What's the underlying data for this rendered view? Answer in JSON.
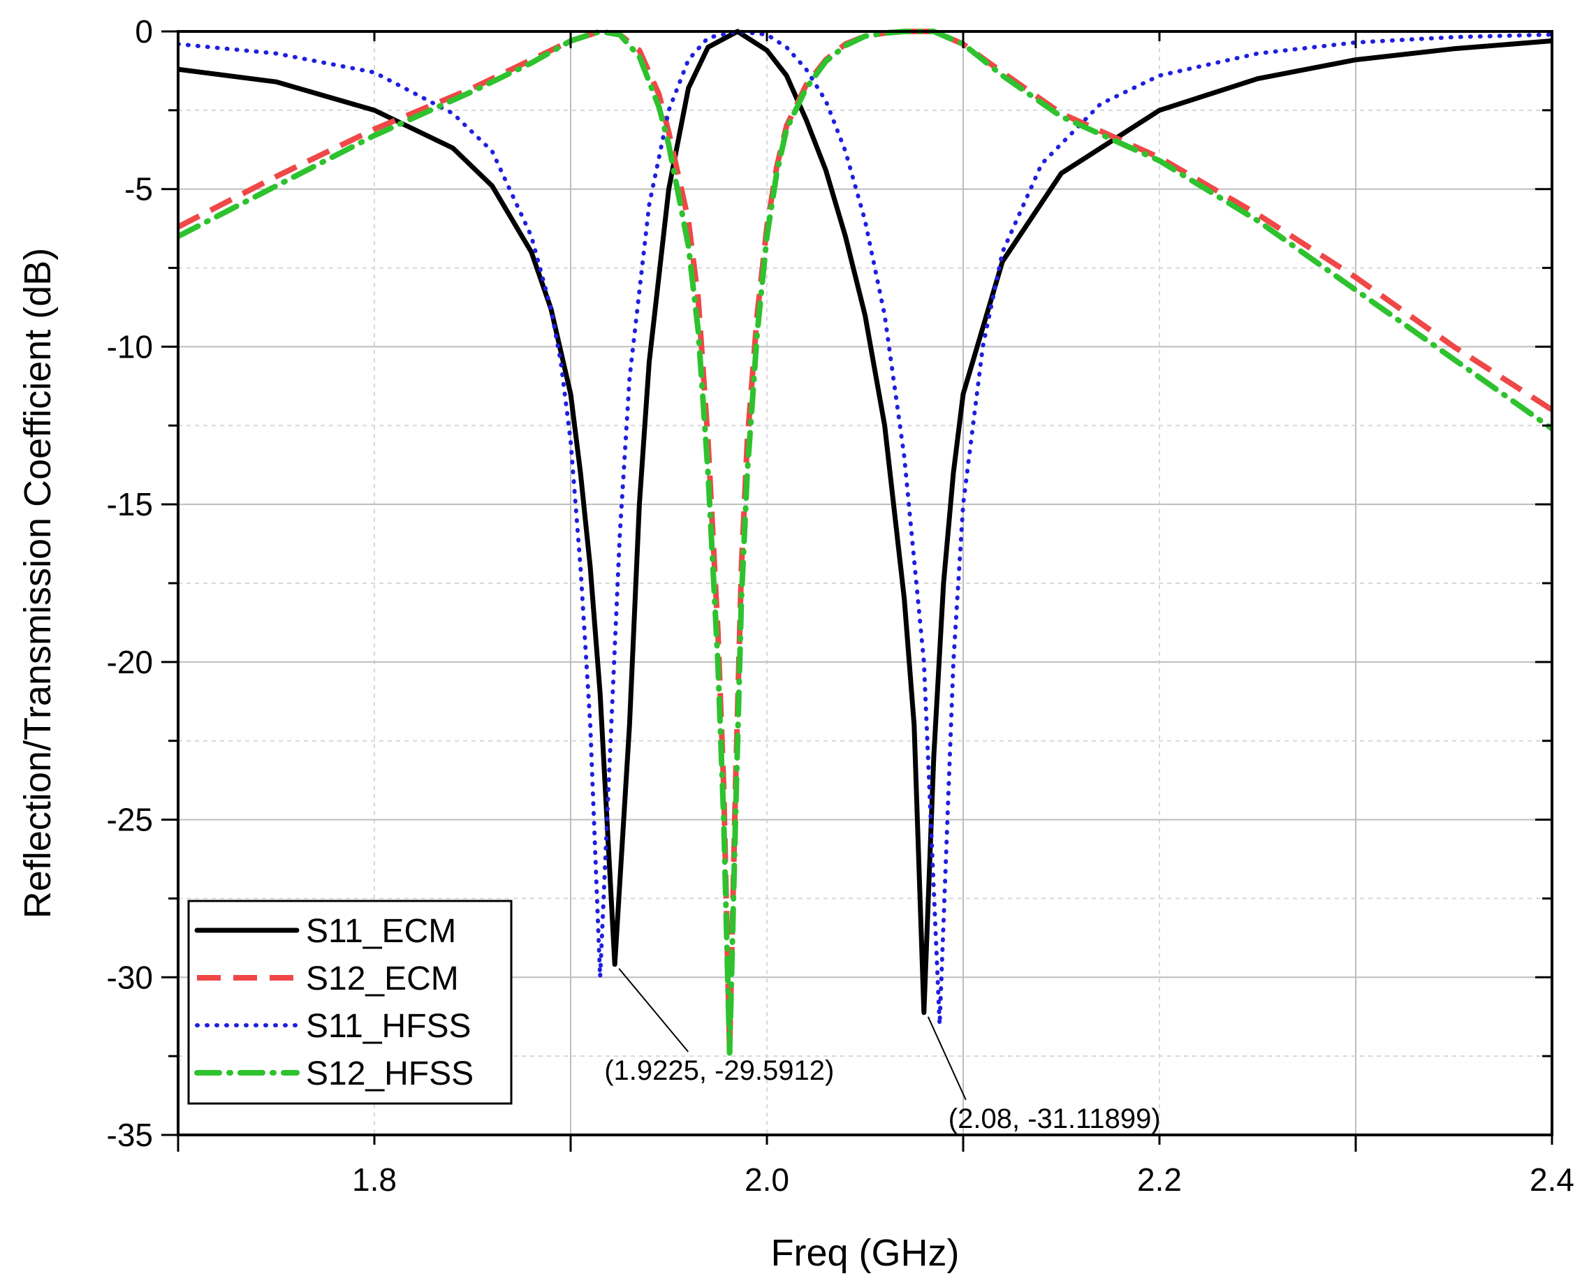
{
  "chart_data": {
    "type": "line",
    "title": "",
    "xlabel": "Freq (GHz)",
    "ylabel": "Reflection/Transmission Coefficient (dB)",
    "xlim": [
      1.7,
      2.4
    ],
    "ylim": [
      -35,
      0
    ],
    "xticks": [
      1.8,
      2.0,
      2.2,
      2.4
    ],
    "xtick_labels": [
      "1.8",
      "2.0",
      "2.2",
      "2.4"
    ],
    "yticks": [
      0,
      -5,
      -10,
      -15,
      -20,
      -25,
      -30,
      -35
    ],
    "ytick_labels": [
      "0",
      "-5",
      "-10",
      "-15",
      "-20",
      "-25",
      "-30",
      "-35"
    ],
    "grid": true,
    "legend_position": "bottom-left",
    "series": [
      {
        "name": "S11_ECM",
        "color": "#000000",
        "style": "solid",
        "x": [
          1.7,
          1.75,
          1.8,
          1.84,
          1.86,
          1.88,
          1.89,
          1.9,
          1.905,
          1.91,
          1.915,
          1.9225,
          1.93,
          1.935,
          1.94,
          1.95,
          1.96,
          1.97,
          1.985,
          2.0,
          2.01,
          2.02,
          2.03,
          2.04,
          2.05,
          2.06,
          2.07,
          2.075,
          2.08,
          2.085,
          2.09,
          2.095,
          2.1,
          2.12,
          2.15,
          2.2,
          2.25,
          2.3,
          2.35,
          2.4
        ],
        "y": [
          -1.2,
          -1.6,
          -2.5,
          -3.7,
          -4.9,
          -7.0,
          -8.8,
          -11.5,
          -14.0,
          -17.0,
          -21.0,
          -29.59,
          -22.0,
          -15.0,
          -10.5,
          -5.0,
          -1.8,
          -0.5,
          0.0,
          -0.6,
          -1.4,
          -2.8,
          -4.4,
          -6.5,
          -9.0,
          -12.5,
          -18.0,
          -22.0,
          -31.12,
          -23.0,
          -17.5,
          -14.0,
          -11.5,
          -7.3,
          -4.5,
          -2.5,
          -1.5,
          -0.9,
          -0.55,
          -0.3
        ]
      },
      {
        "name": "S12_ECM",
        "color": "#f04747",
        "style": "dashed",
        "x": [
          1.7,
          1.75,
          1.8,
          1.85,
          1.88,
          1.9,
          1.915,
          1.925,
          1.935,
          1.945,
          1.95,
          1.96,
          1.965,
          1.97,
          1.975,
          1.978,
          1.981,
          1.984,
          1.987,
          1.99,
          1.995,
          2.0,
          2.005,
          2.01,
          2.02,
          2.03,
          2.04,
          2.05,
          2.06,
          2.07,
          2.085,
          2.1,
          2.12,
          2.15,
          2.2,
          2.25,
          2.3,
          2.35,
          2.4
        ],
        "y": [
          -6.2,
          -4.6,
          -3.1,
          -1.8,
          -0.9,
          -0.3,
          0.0,
          -0.1,
          -0.6,
          -2.0,
          -3.2,
          -6.0,
          -8.5,
          -13.0,
          -19.0,
          -24.0,
          -32.3,
          -24.0,
          -17.0,
          -13.0,
          -9.0,
          -6.2,
          -4.3,
          -3.0,
          -1.7,
          -0.9,
          -0.4,
          -0.15,
          -0.05,
          0.0,
          0.0,
          -0.4,
          -1.3,
          -2.6,
          -4.0,
          -5.8,
          -7.8,
          -10.0,
          -12.0
        ]
      },
      {
        "name": "S11_HFSS",
        "color": "#1f1fe0",
        "style": "dotted",
        "x": [
          1.7,
          1.75,
          1.8,
          1.84,
          1.86,
          1.88,
          1.89,
          1.895,
          1.9,
          1.905,
          1.91,
          1.915,
          1.92,
          1.925,
          1.93,
          1.94,
          1.95,
          1.96,
          1.97,
          1.985,
          2.0,
          2.01,
          2.02,
          2.03,
          2.04,
          2.05,
          2.06,
          2.07,
          2.08,
          2.088,
          2.095,
          2.1,
          2.11,
          2.12,
          2.14,
          2.17,
          2.2,
          2.25,
          2.3,
          2.35,
          2.4
        ],
        "y": [
          -0.4,
          -0.7,
          -1.3,
          -2.6,
          -3.8,
          -6.5,
          -8.8,
          -10.5,
          -13.0,
          -17.0,
          -22.0,
          -30.0,
          -23.0,
          -16.0,
          -11.0,
          -5.5,
          -2.5,
          -0.9,
          -0.2,
          0.0,
          -0.1,
          -0.5,
          -1.2,
          -2.2,
          -3.8,
          -6.0,
          -9.0,
          -13.5,
          -20.0,
          -31.5,
          -20.0,
          -15.0,
          -10.0,
          -7.0,
          -4.2,
          -2.3,
          -1.4,
          -0.7,
          -0.35,
          -0.18,
          -0.1
        ]
      },
      {
        "name": "S12_HFSS",
        "color": "#2ec22e",
        "style": "dash-dot",
        "x": [
          1.7,
          1.75,
          1.8,
          1.85,
          1.88,
          1.9,
          1.915,
          1.925,
          1.935,
          1.945,
          1.95,
          1.96,
          1.965,
          1.97,
          1.975,
          1.978,
          1.981,
          1.984,
          1.987,
          1.99,
          1.995,
          2.0,
          2.005,
          2.01,
          2.02,
          2.03,
          2.04,
          2.05,
          2.06,
          2.07,
          2.085,
          2.1,
          2.12,
          2.15,
          2.2,
          2.25,
          2.3,
          2.35,
          2.4
        ],
        "y": [
          -6.5,
          -4.9,
          -3.3,
          -1.9,
          -1.0,
          -0.3,
          0.0,
          -0.1,
          -0.8,
          -2.4,
          -3.6,
          -6.8,
          -9.5,
          -14.0,
          -20.0,
          -25.0,
          -32.4,
          -25.0,
          -18.0,
          -14.0,
          -9.6,
          -6.5,
          -4.5,
          -3.1,
          -1.8,
          -0.95,
          -0.45,
          -0.15,
          -0.05,
          0.0,
          0.0,
          -0.4,
          -1.4,
          -2.7,
          -4.1,
          -6.0,
          -8.2,
          -10.4,
          -12.6
        ]
      }
    ],
    "annotations": [
      {
        "text": "(1.9225, -29.5912)",
        "x": 1.9225,
        "y": -29.5912
      },
      {
        "text": "(2.08, -31.11899)",
        "x": 2.08,
        "y": -31.11899
      }
    ]
  }
}
